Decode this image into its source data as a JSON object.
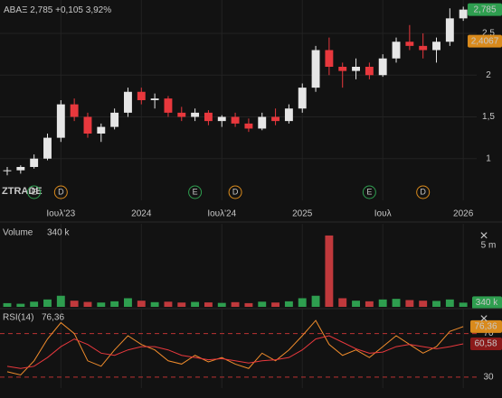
{
  "chart_data": [
    {
      "type": "candlestick",
      "symbol": "ΑΒΑΞ",
      "last": "2,785",
      "change": "+0,105",
      "change_pct": "3,92%",
      "watermark": "ZTRADE",
      "x": [
        "2023-03",
        "2023-04",
        "2023-05",
        "2023-06",
        "2023-07",
        "2023-08",
        "2023-09",
        "2023-10",
        "2023-11",
        "2023-12",
        "2024-01",
        "2024-02",
        "2024-03",
        "2024-04",
        "2024-05",
        "2024-06",
        "2024-07",
        "2024-08",
        "2024-09",
        "2024-10",
        "2024-11",
        "2024-12",
        "2025-01",
        "2025-02",
        "2025-03",
        "2025-04",
        "2025-05",
        "2025-06",
        "2025-07",
        "2025-08",
        "2025-09",
        "2025-10",
        "2025-11",
        "2025-12",
        "2026-01"
      ],
      "open": [
        0.85,
        0.86,
        0.9,
        1.0,
        1.25,
        1.65,
        1.5,
        1.3,
        1.38,
        1.55,
        1.8,
        1.7,
        1.72,
        1.55,
        1.5,
        1.55,
        1.45,
        1.5,
        1.42,
        1.36,
        1.5,
        1.45,
        1.6,
        1.85,
        2.3,
        2.1,
        2.05,
        2.1,
        2.0,
        2.2,
        2.4,
        2.35,
        2.3,
        2.4,
        2.68
      ],
      "high": [
        0.9,
        0.92,
        1.05,
        1.3,
        1.7,
        1.72,
        1.55,
        1.42,
        1.6,
        1.85,
        1.85,
        1.78,
        1.75,
        1.62,
        1.6,
        1.58,
        1.52,
        1.55,
        1.48,
        1.55,
        1.6,
        1.65,
        1.9,
        2.35,
        2.45,
        2.15,
        2.2,
        2.15,
        2.25,
        2.45,
        2.6,
        2.5,
        2.45,
        2.8,
        2.82
      ],
      "low": [
        0.8,
        0.82,
        0.88,
        0.98,
        1.2,
        1.45,
        1.25,
        1.2,
        1.35,
        1.5,
        1.65,
        1.6,
        1.5,
        1.45,
        1.45,
        1.4,
        1.38,
        1.38,
        1.32,
        1.34,
        1.4,
        1.42,
        1.55,
        1.8,
        2.0,
        1.85,
        1.95,
        1.95,
        1.98,
        2.15,
        2.3,
        2.2,
        2.15,
        2.35,
        2.65
      ],
      "close": [
        0.86,
        0.9,
        1.0,
        1.25,
        1.65,
        1.5,
        1.3,
        1.38,
        1.55,
        1.8,
        1.7,
        1.72,
        1.55,
        1.5,
        1.55,
        1.45,
        1.5,
        1.42,
        1.36,
        1.5,
        1.45,
        1.6,
        1.85,
        2.3,
        2.1,
        2.05,
        2.1,
        2.0,
        2.2,
        2.4,
        2.35,
        2.3,
        2.4,
        2.68,
        2.785
      ],
      "up_color": "#e6e6e6",
      "down_color": "#e8383d",
      "xlim": [
        "2023-03",
        "2026-02"
      ],
      "xticks": [
        {
          "value": "2023-07",
          "label": "Ιουλ'23"
        },
        {
          "value": "2024-01",
          "label": "2024"
        },
        {
          "value": "2024-07",
          "label": "Ιουλ'24"
        },
        {
          "value": "2025-01",
          "label": "2025"
        },
        {
          "value": "2025-07",
          "label": "Ιουλ"
        },
        {
          "value": "2026-01",
          "label": "2026"
        }
      ],
      "ylim": [
        0.5,
        2.9
      ],
      "yticks": [
        1,
        {
          "value": 1.5,
          "label": "1,5"
        },
        2,
        {
          "value": 2.5,
          "label": "2,5"
        }
      ],
      "price_labels": [
        {
          "value": 2.785,
          "label": "2,785",
          "color": "#2e9e4f"
        },
        {
          "value": 2.4067,
          "label": "2,4067",
          "color": "#d98a1c"
        }
      ],
      "events": [
        {
          "x": "2023-05",
          "label": "E"
        },
        {
          "x": "2023-07",
          "label": "D"
        },
        {
          "x": "2024-05",
          "label": "E"
        },
        {
          "x": "2024-08",
          "label": "D"
        },
        {
          "x": "2025-06",
          "label": "E"
        },
        {
          "x": "2025-10",
          "label": "D"
        }
      ]
    },
    {
      "type": "bar",
      "title": "Volume",
      "close": "×",
      "values": [
        300000,
        250000,
        420000,
        600000,
        900000,
        500000,
        400000,
        350000,
        450000,
        700000,
        500000,
        380000,
        420000,
        350000,
        400000,
        360000,
        320000,
        380000,
        300000,
        420000,
        350000,
        450000,
        700000,
        900000,
        5800000,
        700000,
        500000,
        450000,
        600000,
        650000,
        550000,
        500000,
        480000,
        600000,
        340000
      ],
      "last": {
        "value": 340000,
        "label": "340 k"
      },
      "ylim": [
        0,
        6750000
      ],
      "yticks": [
        {
          "value": 5000000,
          "label": "5 m"
        }
      ]
    },
    {
      "type": "line",
      "close": "×",
      "series": [
        {
          "name": "RSI(14)",
          "color": "#f08c2c",
          "values": [
            35,
            32,
            45,
            65,
            80,
            70,
            45,
            40,
            55,
            68,
            60,
            55,
            45,
            42,
            50,
            44,
            48,
            42,
            38,
            52,
            45,
            55,
            68,
            82,
            60,
            50,
            55,
            48,
            58,
            68,
            60,
            52,
            58,
            72,
            76.36
          ],
          "last_label": "76,36"
        },
        {
          "color": "#e8383d",
          "values": [
            40,
            38,
            40,
            48,
            58,
            65,
            60,
            52,
            50,
            55,
            58,
            58,
            55,
            50,
            48,
            46,
            47,
            45,
            43,
            45,
            46,
            48,
            55,
            65,
            68,
            62,
            56,
            52,
            53,
            58,
            60,
            58,
            56,
            58,
            60.58
          ],
          "last_label": "60,58"
        }
      ],
      "ylim": [
        20,
        92
      ],
      "yticks": [
        30,
        70
      ]
    }
  ]
}
